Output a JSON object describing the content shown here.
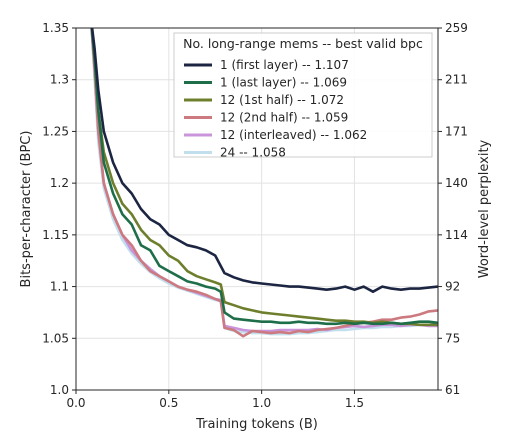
{
  "chart_data": {
    "type": "line",
    "xlabel": "Training tokens (B)",
    "ylabel": "Bits-per-character (BPC)",
    "ylabel_right": "Word-level perplexity",
    "xlim": [
      0,
      1.95
    ],
    "ylim": [
      1.0,
      1.35
    ],
    "x_ticks": [
      "0.0",
      "0.5",
      "1.0",
      "1.5"
    ],
    "x_tick_values": [
      0,
      0.5,
      1.0,
      1.5
    ],
    "y_ticks": [
      "1.0",
      "1.05",
      "1.1",
      "1.15",
      "1.2",
      "1.25",
      "1.3",
      "1.35"
    ],
    "y_tick_values": [
      1.0,
      1.05,
      1.1,
      1.15,
      1.2,
      1.25,
      1.3,
      1.35
    ],
    "y_right_ticks": [
      "61",
      "75",
      "92",
      "114",
      "140",
      "171",
      "211",
      "259"
    ],
    "grid": true,
    "legend_title": "No. long-range mems -- best valid bpc",
    "legend_position": "top-right",
    "series": [
      {
        "name": "1 (first layer) -- 1.107",
        "color": "#1c2541",
        "x": [
          0.08,
          0.1,
          0.12,
          0.15,
          0.2,
          0.25,
          0.3,
          0.35,
          0.4,
          0.45,
          0.5,
          0.55,
          0.6,
          0.65,
          0.7,
          0.75,
          0.8,
          0.85,
          0.9,
          0.95,
          1.0,
          1.05,
          1.1,
          1.15,
          1.2,
          1.25,
          1.3,
          1.35,
          1.4,
          1.45,
          1.5,
          1.55,
          1.6,
          1.65,
          1.7,
          1.75,
          1.8,
          1.85,
          1.9,
          1.95
        ],
        "values": [
          1.36,
          1.33,
          1.29,
          1.25,
          1.22,
          1.2,
          1.19,
          1.175,
          1.165,
          1.16,
          1.15,
          1.145,
          1.14,
          1.138,
          1.135,
          1.13,
          1.113,
          1.109,
          1.106,
          1.104,
          1.103,
          1.102,
          1.101,
          1.1,
          1.1,
          1.099,
          1.098,
          1.097,
          1.098,
          1.1,
          1.097,
          1.1,
          1.095,
          1.1,
          1.098,
          1.097,
          1.098,
          1.098,
          1.099,
          1.1
        ]
      },
      {
        "name": "1 (last layer) -- 1.069",
        "color": "#1f6e4a",
        "x": [
          0.08,
          0.1,
          0.12,
          0.15,
          0.2,
          0.25,
          0.3,
          0.35,
          0.4,
          0.45,
          0.5,
          0.55,
          0.6,
          0.65,
          0.7,
          0.75,
          0.78,
          0.8,
          0.85,
          0.9,
          0.95,
          1.0,
          1.05,
          1.1,
          1.15,
          1.2,
          1.25,
          1.3,
          1.35,
          1.4,
          1.45,
          1.5,
          1.55,
          1.6,
          1.65,
          1.7,
          1.75,
          1.8,
          1.85,
          1.9,
          1.95
        ],
        "values": [
          1.36,
          1.32,
          1.27,
          1.22,
          1.19,
          1.17,
          1.16,
          1.14,
          1.135,
          1.12,
          1.115,
          1.11,
          1.105,
          1.103,
          1.1,
          1.098,
          1.095,
          1.075,
          1.069,
          1.068,
          1.067,
          1.066,
          1.066,
          1.065,
          1.065,
          1.066,
          1.065,
          1.065,
          1.064,
          1.064,
          1.065,
          1.064,
          1.065,
          1.064,
          1.064,
          1.065,
          1.064,
          1.065,
          1.066,
          1.066,
          1.065
        ]
      },
      {
        "name": "12 (1st half) -- 1.072",
        "color": "#6d7f2d",
        "x": [
          0.08,
          0.1,
          0.12,
          0.15,
          0.2,
          0.25,
          0.3,
          0.35,
          0.4,
          0.45,
          0.5,
          0.55,
          0.6,
          0.65,
          0.7,
          0.75,
          0.78,
          0.8,
          0.85,
          0.9,
          0.95,
          1.0,
          1.05,
          1.1,
          1.15,
          1.2,
          1.25,
          1.3,
          1.35,
          1.4,
          1.45,
          1.5,
          1.55,
          1.6,
          1.65,
          1.7,
          1.75,
          1.8,
          1.85,
          1.9,
          1.95
        ],
        "values": [
          1.36,
          1.32,
          1.27,
          1.23,
          1.2,
          1.18,
          1.17,
          1.155,
          1.145,
          1.14,
          1.13,
          1.125,
          1.115,
          1.11,
          1.107,
          1.104,
          1.102,
          1.085,
          1.082,
          1.079,
          1.077,
          1.075,
          1.074,
          1.073,
          1.072,
          1.071,
          1.07,
          1.069,
          1.068,
          1.067,
          1.067,
          1.066,
          1.066,
          1.065,
          1.066,
          1.065,
          1.064,
          1.064,
          1.063,
          1.063,
          1.063
        ]
      },
      {
        "name": "12 (2nd half) -- 1.059",
        "color": "#cc7a80",
        "x": [
          0.08,
          0.1,
          0.12,
          0.15,
          0.2,
          0.25,
          0.3,
          0.35,
          0.4,
          0.45,
          0.5,
          0.55,
          0.6,
          0.65,
          0.7,
          0.75,
          0.78,
          0.8,
          0.85,
          0.9,
          0.95,
          1.0,
          1.05,
          1.1,
          1.15,
          1.2,
          1.25,
          1.3,
          1.35,
          1.4,
          1.45,
          1.5,
          1.55,
          1.6,
          1.65,
          1.7,
          1.75,
          1.8,
          1.85,
          1.9,
          1.95
        ],
        "values": [
          1.36,
          1.31,
          1.25,
          1.2,
          1.17,
          1.15,
          1.14,
          1.125,
          1.115,
          1.11,
          1.105,
          1.1,
          1.097,
          1.095,
          1.092,
          1.088,
          1.086,
          1.06,
          1.058,
          1.052,
          1.057,
          1.056,
          1.055,
          1.056,
          1.055,
          1.057,
          1.056,
          1.058,
          1.059,
          1.06,
          1.062,
          1.064,
          1.065,
          1.066,
          1.068,
          1.068,
          1.07,
          1.071,
          1.073,
          1.076,
          1.077
        ]
      },
      {
        "name": "12 (interleaved) -- 1.062",
        "color": "#c994d9",
        "x": [
          0.08,
          0.1,
          0.12,
          0.15,
          0.2,
          0.25,
          0.3,
          0.35,
          0.4,
          0.45,
          0.5,
          0.55,
          0.6,
          0.65,
          0.7,
          0.75,
          0.78,
          0.8,
          0.85,
          0.9,
          0.95,
          1.0,
          1.05,
          1.1,
          1.15,
          1.2,
          1.25,
          1.3,
          1.35,
          1.4,
          1.45,
          1.5,
          1.55,
          1.6,
          1.65,
          1.7,
          1.75,
          1.8,
          1.85,
          1.9,
          1.95
        ],
        "values": [
          1.36,
          1.31,
          1.25,
          1.2,
          1.17,
          1.15,
          1.135,
          1.125,
          1.117,
          1.11,
          1.105,
          1.1,
          1.097,
          1.094,
          1.091,
          1.088,
          1.087,
          1.062,
          1.06,
          1.058,
          1.057,
          1.057,
          1.057,
          1.058,
          1.058,
          1.058,
          1.058,
          1.059,
          1.058,
          1.06,
          1.061,
          1.062,
          1.061,
          1.062,
          1.063,
          1.063,
          1.062,
          1.063,
          1.063,
          1.062,
          1.062
        ]
      },
      {
        "name": "24 -- 1.058",
        "color": "#c2dfee",
        "x": [
          0.08,
          0.1,
          0.12,
          0.15,
          0.2,
          0.25,
          0.3,
          0.35,
          0.4,
          0.45,
          0.5,
          0.55,
          0.6,
          0.65,
          0.7,
          0.75,
          0.78,
          0.8,
          0.85,
          0.9,
          0.95,
          1.0,
          1.05,
          1.1,
          1.15,
          1.2,
          1.25,
          1.3,
          1.35,
          1.4,
          1.45,
          1.5,
          1.55,
          1.6,
          1.65,
          1.7,
          1.75,
          1.8,
          1.85,
          1.9,
          1.95
        ],
        "values": [
          1.36,
          1.3,
          1.24,
          1.195,
          1.165,
          1.145,
          1.132,
          1.122,
          1.114,
          1.108,
          1.103,
          1.099,
          1.096,
          1.093,
          1.09,
          1.087,
          1.086,
          1.06,
          1.057,
          1.056,
          1.055,
          1.055,
          1.054,
          1.054,
          1.054,
          1.055,
          1.055,
          1.056,
          1.057,
          1.058,
          1.058,
          1.059,
          1.06,
          1.06,
          1.061,
          1.061,
          1.062,
          1.062,
          1.063,
          1.063,
          1.064
        ]
      }
    ]
  }
}
